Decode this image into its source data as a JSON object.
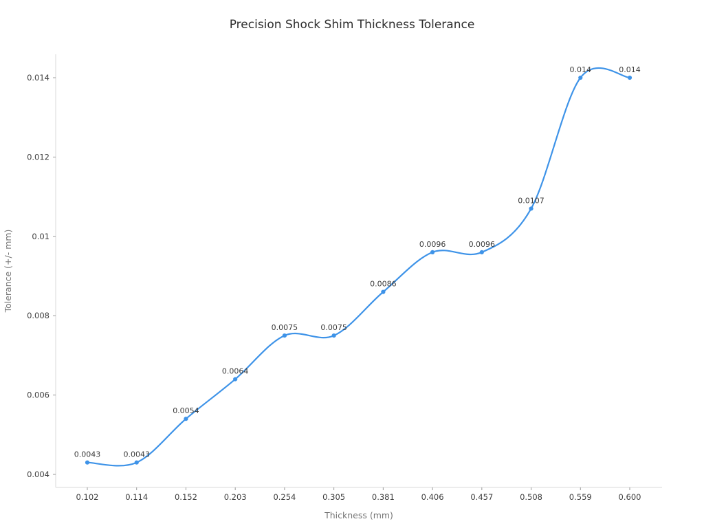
{
  "page": {
    "background": "#ffffff"
  },
  "chart_data": {
    "type": "line",
    "title": "Precision Shock Shim Thickness Tolerance",
    "xlabel": "Thickness (mm)",
    "ylabel": "Tolerance (+/- mm)",
    "categories": [
      "0.102",
      "0.114",
      "0.152",
      "0.203",
      "0.254",
      "0.305",
      "0.381",
      "0.406",
      "0.457",
      "0.508",
      "0.559",
      "0.600"
    ],
    "values": [
      0.0043,
      0.0043,
      0.0054,
      0.0064,
      0.0075,
      0.0075,
      0.0086,
      0.0096,
      0.0096,
      0.0107,
      0.014,
      0.014
    ],
    "point_labels": [
      "0.0043",
      "0.0043",
      "0.0054",
      "0.0064",
      "0.0075",
      "0.0075",
      "0.0086",
      "0.0096",
      "0.0096",
      "0.0107",
      "0.014",
      "0.014"
    ],
    "yticks": [
      0.004,
      0.006,
      0.008,
      0.01,
      0.012,
      0.014
    ],
    "ytick_labels": [
      "0.004",
      "0.006",
      "0.008",
      "0.01",
      "0.012",
      "0.014"
    ],
    "ylim": [
      0.003671,
      0.01459
    ],
    "grid": false,
    "legend": "none",
    "smooth": true,
    "marker": "circle",
    "colors": {
      "line": "#3e93e8",
      "marker": "#3e93e8",
      "title": "#2d2d2d",
      "tick_label": "#3d3d3d",
      "axis_title": "#757575",
      "point_label": "#3a3a3a",
      "spine": "#d9d9d9",
      "tick_mark": "#999999"
    }
  }
}
